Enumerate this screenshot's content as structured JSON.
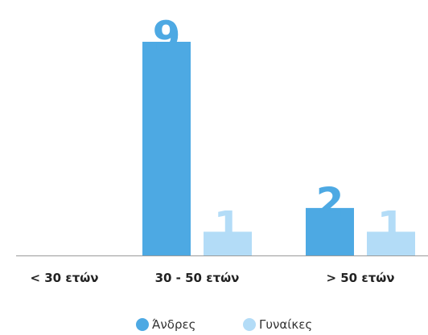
{
  "chart_data": {
    "type": "bar",
    "categories": [
      "< 30 ετών",
      "30 - 50 ετών",
      "> 50 ετών"
    ],
    "series": [
      {
        "name": "Άνδρες",
        "values": [
          0,
          9,
          2
        ],
        "value_labels": [
          "",
          "9",
          "2"
        ],
        "color": "#4da9e3"
      },
      {
        "name": "Γυναίκες",
        "values": [
          0,
          1,
          1
        ],
        "value_labels": [
          "",
          "1",
          "1"
        ],
        "color": "#b3dcf7"
      }
    ],
    "ylim": [
      0,
      9
    ],
    "grid": false,
    "legend_position": "bottom-center",
    "title": "",
    "xlabel": "",
    "ylabel": ""
  }
}
